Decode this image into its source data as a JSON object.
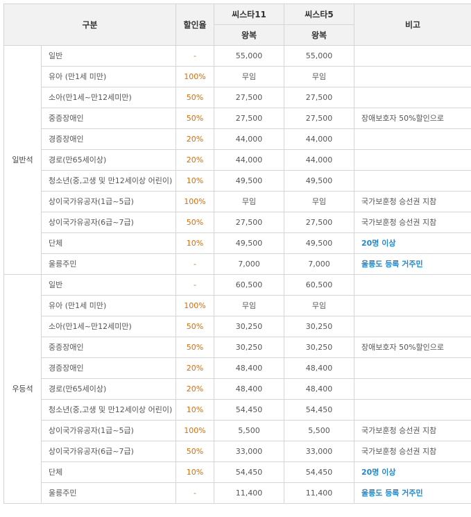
{
  "header": {
    "category": "구분",
    "discount": "할인율",
    "ship1": "씨스타11",
    "ship2": "씨스타5",
    "note": "비고",
    "round_trip": "왕복"
  },
  "groups": [
    {
      "seat": "일반석",
      "rows": [
        {
          "cat": "일반",
          "rate": "-",
          "s1": "55,000",
          "s2": "55,000",
          "note": ""
        },
        {
          "cat": "유아 (만1세 미만)",
          "rate": "100%",
          "s1": "무임",
          "s2": "무임",
          "note": ""
        },
        {
          "cat": "소아(만1세~만12세미만)",
          "rate": "50%",
          "s1": "27,500",
          "s2": "27,500",
          "note": ""
        },
        {
          "cat": "중증장애인",
          "rate": "50%",
          "s1": "27,500",
          "s2": "27,500",
          "note": "장애보호자 50%할인으로"
        },
        {
          "cat": "경증장애인",
          "rate": "20%",
          "s1": "44,000",
          "s2": "44,000",
          "note": ""
        },
        {
          "cat": "경로(만65세이상)",
          "rate": "20%",
          "s1": "44,000",
          "s2": "44,000",
          "note": ""
        },
        {
          "cat": "청소년(중,고생 및 만12세이상 어린이)",
          "rate": "10%",
          "s1": "49,500",
          "s2": "49,500",
          "note": ""
        },
        {
          "cat": "상이국가유공자(1급~5급)",
          "rate": "100%",
          "s1": "무임",
          "s2": "무임",
          "note": "국가보훈청 승선권 지참"
        },
        {
          "cat": "상이국가유공자(6급~7급)",
          "rate": "50%",
          "s1": "27,500",
          "s2": "27,500",
          "note": "국가보훈청 승선권 지참"
        },
        {
          "cat": "단체",
          "rate": "10%",
          "s1": "49,500",
          "s2": "49,500",
          "note": "20명 이상"
        },
        {
          "cat": "울릉주민",
          "rate": "-",
          "s1": "7,000",
          "s2": "7,000",
          "note": "울릉도 등록 거주민"
        }
      ]
    },
    {
      "seat": "우등석",
      "rows": [
        {
          "cat": "일반",
          "rate": "-",
          "s1": "60,500",
          "s2": "60,500",
          "note": ""
        },
        {
          "cat": "유아 (만1세 미만)",
          "rate": "100%",
          "s1": "무임",
          "s2": "무임",
          "note": ""
        },
        {
          "cat": "소아(만1세~만12세미만)",
          "rate": "50%",
          "s1": "30,250",
          "s2": "30,250",
          "note": ""
        },
        {
          "cat": "중증장애인",
          "rate": "50%",
          "s1": "30,250",
          "s2": "30,250",
          "note": "장애보호자 50%할인으로"
        },
        {
          "cat": "경증장애인",
          "rate": "20%",
          "s1": "48,400",
          "s2": "48,400",
          "note": ""
        },
        {
          "cat": "경로(만65세이상)",
          "rate": "20%",
          "s1": "48,400",
          "s2": "48,400",
          "note": ""
        },
        {
          "cat": "청소년(중,고생 및 만12세이상 어린이)",
          "rate": "10%",
          "s1": "54,450",
          "s2": "54,450",
          "note": ""
        },
        {
          "cat": "상이국가유공자(1급~5급)",
          "rate": "100%",
          "s1": "5,500",
          "s2": "5,500",
          "note": "국가보훈청 승선권 지참"
        },
        {
          "cat": "상이국가유공자(6급~7급)",
          "rate": "50%",
          "s1": "33,000",
          "s2": "33,000",
          "note": "국가보훈청 승선권 지참"
        },
        {
          "cat": "단체",
          "rate": "10%",
          "s1": "54,450",
          "s2": "54,450",
          "note": "20명 이상"
        },
        {
          "cat": "울릉주민",
          "rate": "-",
          "s1": "11,400",
          "s2": "11,400",
          "note": "울릉도 등록 거주민"
        }
      ]
    }
  ],
  "colors": {
    "rate": "#e26b00",
    "note_highlight": "#1e88d0",
    "header_bg": "#f2f2f2",
    "border": "#d5d5d5"
  }
}
